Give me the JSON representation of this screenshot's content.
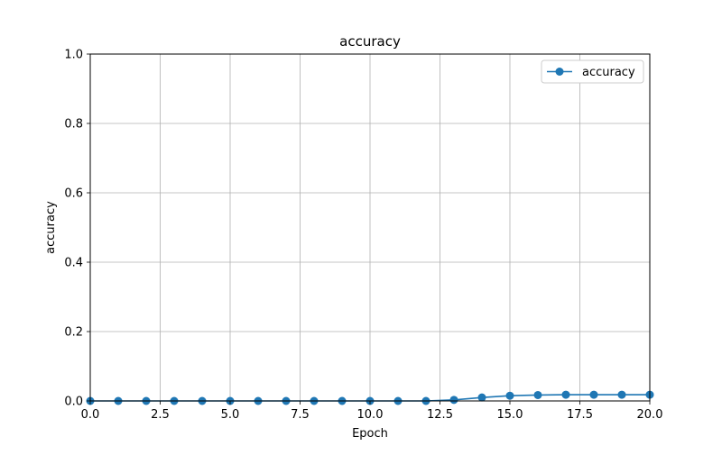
{
  "chart_data": {
    "type": "line",
    "title": "accuracy",
    "xlabel": "Epoch",
    "ylabel": "accuracy",
    "xlim": [
      0,
      20
    ],
    "ylim": [
      0,
      1
    ],
    "x_ticks": [
      0,
      2.5,
      5,
      7.5,
      10,
      12.5,
      15,
      17.5,
      20
    ],
    "x_tick_labels": [
      "0.0",
      "2.5",
      "5.0",
      "7.5",
      "10.0",
      "12.5",
      "15.0",
      "17.5",
      "20.0"
    ],
    "y_ticks": [
      0,
      0.2,
      0.4,
      0.6,
      0.8,
      1.0
    ],
    "y_tick_labels": [
      "0.0",
      "0.2",
      "0.4",
      "0.6",
      "0.8",
      "1.0"
    ],
    "grid": true,
    "legend_position": "top-right",
    "series": [
      {
        "name": "accuracy",
        "color": "#1f77b4",
        "marker": "circle",
        "x": [
          0,
          1,
          2,
          3,
          4,
          5,
          6,
          7,
          8,
          9,
          10,
          11,
          12,
          13,
          14,
          15,
          16,
          17,
          18,
          19,
          20
        ],
        "values": [
          0,
          0,
          0,
          0,
          0,
          0,
          0,
          0,
          0,
          0,
          0,
          0,
          0,
          0.003,
          0.01,
          0.015,
          0.017,
          0.018,
          0.018,
          0.018,
          0.018
        ]
      }
    ]
  }
}
